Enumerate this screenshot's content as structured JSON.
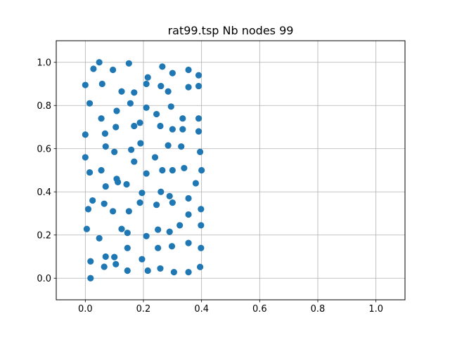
{
  "chart_data": {
    "type": "scatter",
    "title": "rat99.tsp Nb nodes 99",
    "xlabel": "",
    "ylabel": "",
    "xlim": [
      -0.1,
      1.1
    ],
    "ylim": [
      -0.1,
      1.1
    ],
    "grid": true,
    "xticks": [
      0.0,
      0.2,
      0.4,
      0.6,
      0.8,
      1.0
    ],
    "yticks": [
      0.0,
      0.2,
      0.4,
      0.6,
      0.8,
      1.0
    ],
    "xtick_labels": [
      "0.0",
      "0.2",
      "0.4",
      "0.6",
      "0.8",
      "1.0"
    ],
    "ytick_labels": [
      "0.0",
      "0.2",
      "0.4",
      "0.6",
      "0.8",
      "1.0"
    ],
    "marker_color": "#1f77b4",
    "points": [
      [
        0.048,
        1.0
      ],
      [
        0.15,
        0.995
      ],
      [
        0.265,
        0.98
      ],
      [
        0.355,
        0.965
      ],
      [
        0.028,
        0.97
      ],
      [
        0.095,
        0.965
      ],
      [
        0.215,
        0.93
      ],
      [
        0.3,
        0.95
      ],
      [
        0.39,
        0.94
      ],
      [
        0.0,
        0.895
      ],
      [
        0.058,
        0.9
      ],
      [
        0.125,
        0.865
      ],
      [
        0.168,
        0.86
      ],
      [
        0.21,
        0.9
      ],
      [
        0.26,
        0.89
      ],
      [
        0.285,
        0.865
      ],
      [
        0.355,
        0.885
      ],
      [
        0.39,
        0.89
      ],
      [
        0.015,
        0.81
      ],
      [
        0.108,
        0.775
      ],
      [
        0.155,
        0.81
      ],
      [
        0.21,
        0.79
      ],
      [
        0.295,
        0.795
      ],
      [
        0.055,
        0.74
      ],
      [
        0.105,
        0.7
      ],
      [
        0.168,
        0.705
      ],
      [
        0.188,
        0.72
      ],
      [
        0.245,
        0.76
      ],
      [
        0.258,
        0.705
      ],
      [
        0.3,
        0.69
      ],
      [
        0.335,
        0.74
      ],
      [
        0.39,
        0.74
      ],
      [
        0.335,
        0.69
      ],
      [
        0.39,
        0.68
      ],
      [
        0.0,
        0.665
      ],
      [
        0.068,
        0.67
      ],
      [
        0.07,
        0.61
      ],
      [
        0.1,
        0.585
      ],
      [
        0.158,
        0.595
      ],
      [
        0.19,
        0.625
      ],
      [
        0.285,
        0.615
      ],
      [
        0.33,
        0.61
      ],
      [
        0.395,
        0.585
      ],
      [
        0.0,
        0.56
      ],
      [
        0.168,
        0.54
      ],
      [
        0.24,
        0.56
      ],
      [
        0.015,
        0.49
      ],
      [
        0.055,
        0.5
      ],
      [
        0.108,
        0.46
      ],
      [
        0.112,
        0.445
      ],
      [
        0.21,
        0.485
      ],
      [
        0.265,
        0.5
      ],
      [
        0.3,
        0.5
      ],
      [
        0.34,
        0.51
      ],
      [
        0.4,
        0.5
      ],
      [
        0.38,
        0.44
      ],
      [
        0.07,
        0.425
      ],
      [
        0.142,
        0.435
      ],
      [
        0.195,
        0.395
      ],
      [
        0.26,
        0.4
      ],
      [
        0.29,
        0.38
      ],
      [
        0.025,
        0.36
      ],
      [
        0.065,
        0.345
      ],
      [
        0.188,
        0.35
      ],
      [
        0.245,
        0.34
      ],
      [
        0.3,
        0.35
      ],
      [
        0.355,
        0.37
      ],
      [
        0.01,
        0.32
      ],
      [
        0.095,
        0.31
      ],
      [
        0.15,
        0.31
      ],
      [
        0.355,
        0.295
      ],
      [
        0.398,
        0.32
      ],
      [
        0.005,
        0.228
      ],
      [
        0.048,
        0.185
      ],
      [
        0.125,
        0.228
      ],
      [
        0.145,
        0.21
      ],
      [
        0.21,
        0.195
      ],
      [
        0.25,
        0.225
      ],
      [
        0.29,
        0.215
      ],
      [
        0.325,
        0.245
      ],
      [
        0.398,
        0.245
      ],
      [
        0.145,
        0.14
      ],
      [
        0.25,
        0.14
      ],
      [
        0.298,
        0.148
      ],
      [
        0.355,
        0.163
      ],
      [
        0.398,
        0.14
      ],
      [
        0.018,
        0.078
      ],
      [
        0.07,
        0.1
      ],
      [
        0.1,
        0.098
      ],
      [
        0.195,
        0.088
      ],
      [
        0.065,
        0.053
      ],
      [
        0.105,
        0.065
      ],
      [
        0.145,
        0.035
      ],
      [
        0.215,
        0.035
      ],
      [
        0.258,
        0.045
      ],
      [
        0.305,
        0.028
      ],
      [
        0.355,
        0.028
      ],
      [
        0.395,
        0.052
      ],
      [
        0.018,
        0.0
      ]
    ]
  }
}
